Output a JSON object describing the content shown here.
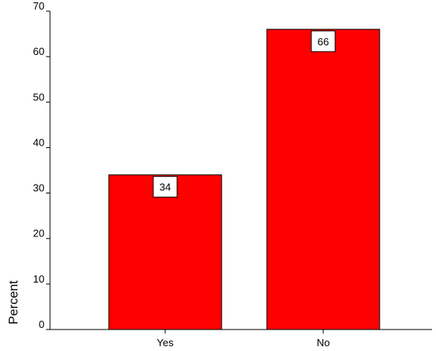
{
  "chart_data": {
    "type": "bar",
    "categories": [
      "Yes",
      "No"
    ],
    "values": [
      34,
      66
    ],
    "data_labels": [
      "34",
      "66"
    ],
    "title": "",
    "xlabel": "",
    "ylabel": "Percent",
    "ylim": [
      0,
      70
    ],
    "yticks": [
      0,
      10,
      20,
      30,
      40,
      50,
      60,
      70
    ],
    "grid": false,
    "legend": "none",
    "bar_color": "#ff0000"
  }
}
